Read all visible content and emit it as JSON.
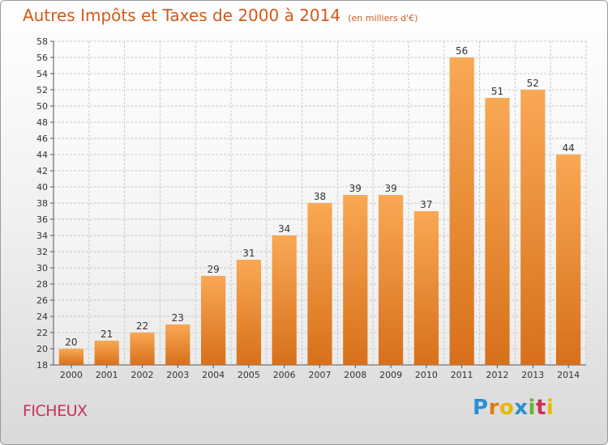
{
  "chart_data": {
    "type": "bar",
    "title": "Autres Impôts et Taxes de 2000 à 2014",
    "subtitle": "(en milliers d'€)",
    "categories": [
      "2000",
      "2001",
      "2002",
      "2003",
      "2004",
      "2005",
      "2006",
      "2007",
      "2008",
      "2009",
      "2010",
      "2011",
      "2012",
      "2013",
      "2014"
    ],
    "values": [
      20,
      21,
      22,
      23,
      29,
      31,
      34,
      38,
      39,
      39,
      37,
      56,
      51,
      52,
      44
    ],
    "ylim": [
      18,
      58
    ],
    "ytick_step": 2,
    "grid": true,
    "bar_color": "#f08a2c"
  },
  "footer": {
    "commune": "FICHEUX",
    "brand": "Proxiti"
  }
}
